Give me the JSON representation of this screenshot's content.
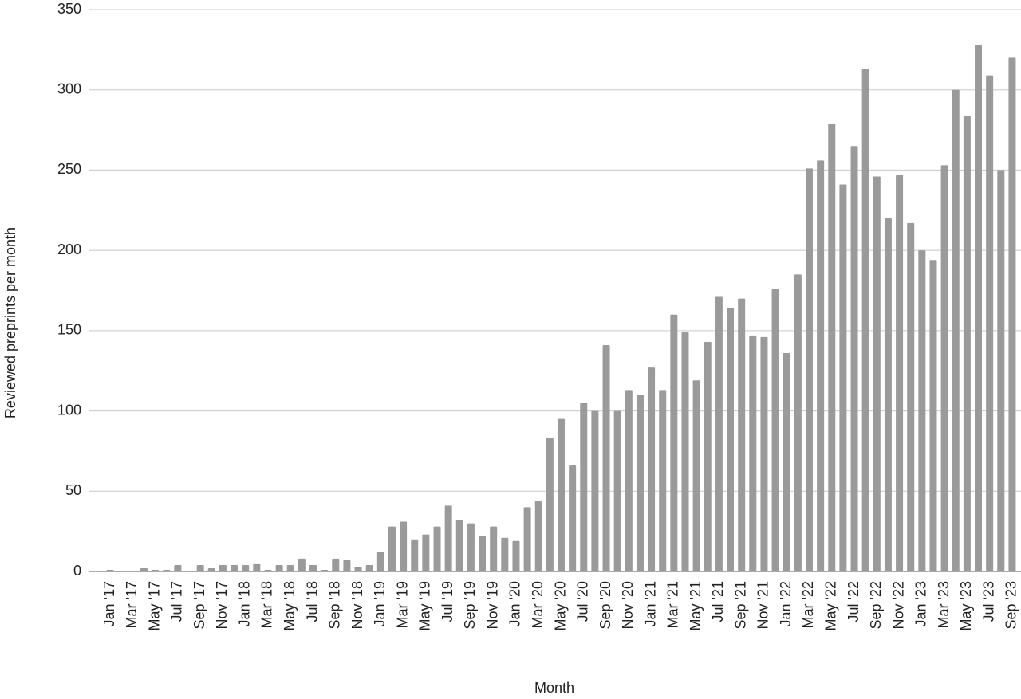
{
  "chart_data": {
    "type": "bar",
    "x_label": "Month",
    "y_label": "Reviewed preprints per month",
    "categories": [
      "Jan '17",
      null,
      "Mar '17",
      null,
      "May '17",
      null,
      "Jul '17",
      null,
      "Sep '17",
      null,
      "Nov '17",
      null,
      "Jan '18",
      null,
      "Mar '18",
      null,
      "May '18",
      null,
      "Jul '18",
      null,
      "Sep '18",
      null,
      "Nov '18",
      null,
      "Jan '19",
      null,
      "Mar '19",
      null,
      "May '19",
      null,
      "Jul '19",
      null,
      "Sep '19",
      null,
      "Nov '19",
      null,
      "Jan '20",
      null,
      "Mar '20",
      null,
      "May '20",
      null,
      "Jul '20",
      null,
      "Sep '20",
      null,
      "Nov '20",
      null,
      "Jan '21",
      null,
      "Mar '21",
      null,
      "May '21",
      null,
      "Jul '21",
      null,
      "Sep '21",
      null,
      "Nov '21",
      null,
      "Jan '22",
      null,
      "Mar '22",
      null,
      "May '22",
      null,
      "Jul '22",
      null,
      "Sep '22",
      null,
      "Nov '22",
      null,
      "Jan '23",
      null,
      "Mar '23",
      null,
      "May '23",
      null,
      "Jul '23",
      null,
      "Sep '23"
    ],
    "values": [
      1,
      0,
      0,
      2,
      1,
      1,
      4,
      0,
      4,
      2,
      4,
      4,
      4,
      5,
      1,
      4,
      4,
      8,
      4,
      1,
      8,
      7,
      3,
      4,
      12,
      28,
      31,
      20,
      23,
      28,
      41,
      32,
      30,
      22,
      28,
      21,
      19,
      40,
      44,
      83,
      95,
      66,
      105,
      100,
      141,
      100,
      113,
      110,
      127,
      113,
      160,
      149,
      119,
      143,
      171,
      164,
      170,
      147,
      146,
      176,
      136,
      185,
      251,
      256,
      279,
      241,
      265,
      313,
      246,
      220,
      247,
      217,
      200,
      194,
      253,
      300,
      284,
      328,
      309,
      250,
      320
    ],
    "color": "#9a9a9a",
    "ylim": [
      0,
      350
    ],
    "yticks": [
      0,
      50,
      100,
      150,
      200,
      250,
      300,
      350
    ],
    "grid": true
  }
}
